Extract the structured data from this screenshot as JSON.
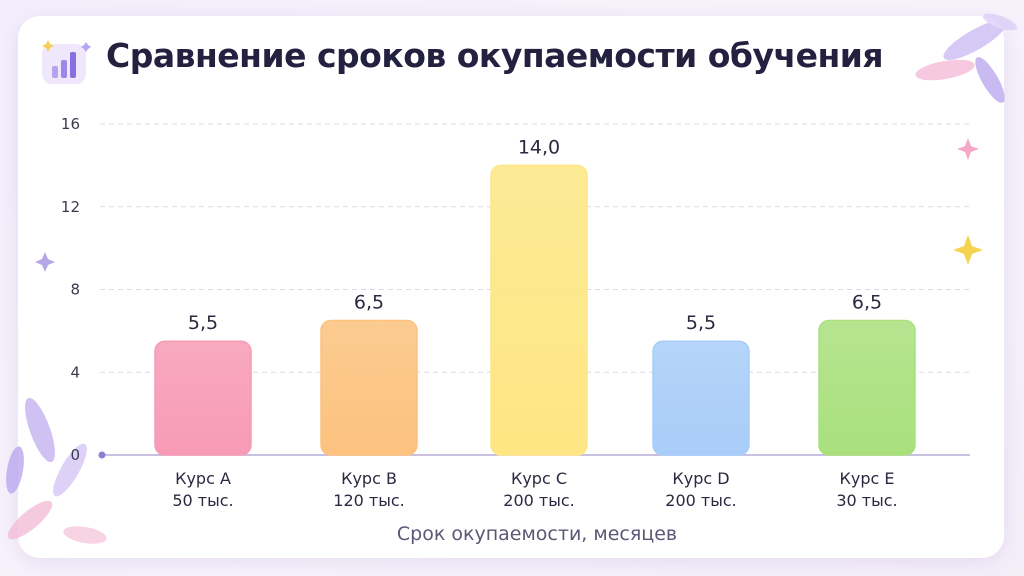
{
  "title": "Сравнение сроков окупаемости обучения",
  "chart_data": {
    "type": "bar",
    "title": "Сравнение сроков окупаемости обучения",
    "xlabel": "Срок окупаемости, месяцев",
    "ylabel": "",
    "ylim": [
      0,
      16
    ],
    "yticks": [
      "0",
      "4",
      "8",
      "12",
      "16"
    ],
    "grid": true,
    "categories": [
      {
        "name": "Курс А",
        "sub": "50 тыс."
      },
      {
        "name": "Курс B",
        "sub": "120 тыс."
      },
      {
        "name": "Курс C",
        "sub": "200 тыс."
      },
      {
        "name": "Курс D",
        "sub": "200 тыс."
      },
      {
        "name": "Курс E",
        "sub": "30 тыс."
      }
    ],
    "values": [
      5.5,
      6.5,
      14.0,
      5.5,
      6.5
    ],
    "value_labels": [
      "5,5",
      "6,5",
      "14,0",
      "5,5",
      "6,5"
    ],
    "colors": [
      "#f79ab5",
      "#fcc27e",
      "#fde683",
      "#a8cdf8",
      "#a9e07d"
    ]
  }
}
